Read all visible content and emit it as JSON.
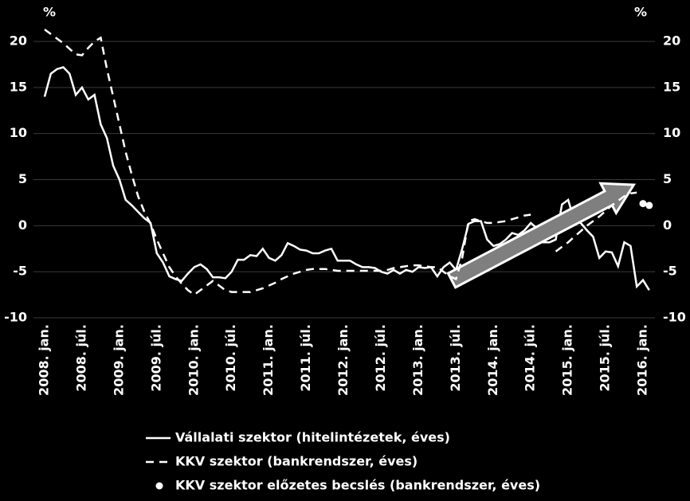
{
  "chart_data": {
    "type": "line",
    "y_label": "%",
    "y2_label": "%",
    "categories": [
      "2008. jan.",
      null,
      null,
      null,
      null,
      null,
      "2008. júl.",
      null,
      null,
      null,
      null,
      null,
      "2009. jan.",
      null,
      null,
      null,
      null,
      null,
      "2009. júl.",
      null,
      null,
      null,
      null,
      null,
      "2010. jan.",
      null,
      null,
      null,
      null,
      null,
      "2010. júl.",
      null,
      null,
      null,
      null,
      null,
      "2011. jan.",
      null,
      null,
      null,
      null,
      null,
      "2011. júl.",
      null,
      null,
      null,
      null,
      null,
      "2012. jan.",
      null,
      null,
      null,
      null,
      null,
      "2012. júl.",
      null,
      null,
      null,
      null,
      null,
      "2013. jan.",
      null,
      null,
      null,
      null,
      null,
      "2013. júl.",
      null,
      null,
      null,
      null,
      null,
      "2014. jan.",
      null,
      null,
      null,
      null,
      null,
      "2014. júl.",
      null,
      null,
      null,
      null,
      null,
      "2015. jan.",
      null,
      null,
      null,
      null,
      null,
      "2015. júl.",
      null,
      null,
      null,
      null,
      null,
      "2016. jan.",
      null
    ],
    "series": [
      {
        "name": "Vállalati szektor (hitelintézetek, éves)",
        "color": "#ffffff",
        "style": "solid",
        "values": [
          14,
          16.5,
          17,
          17.2,
          16.5,
          14.2,
          15,
          13.7,
          14.2,
          11,
          9.5,
          6.5,
          5,
          2.8,
          2.2,
          1.5,
          0.8,
          0.3,
          -3,
          -4,
          -5.5,
          -5.8,
          -6,
          -5.2,
          -4.5,
          -4.2,
          -4.7,
          -5.6,
          -5.6,
          -5.7,
          -5,
          -3.7,
          -3.7,
          -3.2,
          -3.3,
          -2.5,
          -3.5,
          -3.8,
          -3.2,
          -1.9,
          -2.2,
          -2.6,
          -2.7,
          -3,
          -3,
          -2.7,
          -2.5,
          -3.8,
          -3.8,
          -3.8,
          -4.2,
          -4.5,
          -4.5,
          -4.6,
          -5,
          -5.2,
          -4.8,
          -5.2,
          -4.8,
          -5,
          -4.5,
          -4.6,
          -4.5,
          -5.5,
          -4.5,
          -4,
          -4.8,
          -2.5,
          0.2,
          0.5,
          0.5,
          -1.5,
          -2.2,
          -2,
          -1.5,
          -0.8,
          -1,
          -0.5,
          0.3,
          -0.3,
          -1.8,
          -1.8,
          -1.5,
          2.3,
          2.8,
          0.5,
          0.3,
          -0.5,
          -1.2,
          -3.5,
          -2.8,
          -2.9,
          -4.4,
          -1.8,
          -2.2,
          -6.6,
          -5.9,
          -7
        ]
      },
      {
        "name": "KKV szektor (bankrendszer, éves)",
        "color": "#ffffff",
        "style": "dashed",
        "values": [
          21.3,
          20.8,
          20.3,
          19.8,
          19.2,
          18.6,
          18.5,
          19.3,
          20,
          20.4,
          17,
          14,
          11,
          8,
          5.5,
          3.2,
          1.5,
          0.2,
          -1.5,
          -3,
          -4.5,
          -5.5,
          -6.3,
          -7,
          -7.5,
          -7,
          -6.5,
          -6,
          -6.5,
          -7,
          -7.2,
          -7.2,
          -7.2,
          -7.2,
          -7,
          -6.8,
          -6.5,
          -6.2,
          -5.8,
          -5.5,
          -5.2,
          -5,
          -4.8,
          -4.7,
          -4.7,
          -4.7,
          -4.8,
          -4.9,
          -4.9,
          -4.9,
          -4.9,
          -4.9,
          -4.9,
          -4.9,
          -4.9,
          -4.8,
          -4.6,
          -4.5,
          -4.4,
          -4.3,
          -4.3,
          -4.4,
          -4.5,
          -4.5,
          -5,
          -5.5,
          -5.8,
          -3.5,
          0.5,
          0.7,
          0.5,
          0.3,
          0.3,
          0.4,
          0.5,
          0.7,
          0.9,
          1.1,
          1.2,
          null,
          null,
          null,
          -2.8,
          -2.3,
          -1.8,
          -1.2,
          -0.6,
          0,
          0.5,
          1,
          1.6,
          2.2,
          2.7,
          3.2,
          3.5,
          3.6,
          null,
          null
        ]
      },
      {
        "name": "KKV szektor előzetes becslés (bankrendszer, éves)",
        "color": "#ffffff",
        "style": "dots",
        "values": [
          null,
          null,
          null,
          null,
          null,
          null,
          null,
          null,
          null,
          null,
          null,
          null,
          null,
          null,
          null,
          null,
          null,
          null,
          null,
          null,
          null,
          null,
          null,
          null,
          null,
          null,
          null,
          null,
          null,
          null,
          null,
          null,
          null,
          null,
          null,
          null,
          null,
          null,
          null,
          null,
          null,
          null,
          null,
          null,
          null,
          null,
          null,
          null,
          null,
          null,
          null,
          null,
          null,
          null,
          null,
          null,
          null,
          null,
          null,
          null,
          null,
          null,
          null,
          null,
          null,
          null,
          null,
          null,
          null,
          null,
          null,
          null,
          null,
          null,
          null,
          null,
          null,
          null,
          null,
          null,
          null,
          null,
          null,
          null,
          null,
          null,
          null,
          null,
          null,
          null,
          null,
          null,
          null,
          null,
          null,
          null,
          2.4,
          2.2
        ]
      }
    ],
    "ylim": [
      -10,
      20
    ],
    "yticks": [
      -10,
      -5,
      0,
      5,
      10,
      15,
      20
    ],
    "y2lim": [
      -10,
      20
    ],
    "y2ticks": [
      -10,
      -5,
      0,
      5,
      10,
      15,
      20
    ],
    "grid": true
  }
}
